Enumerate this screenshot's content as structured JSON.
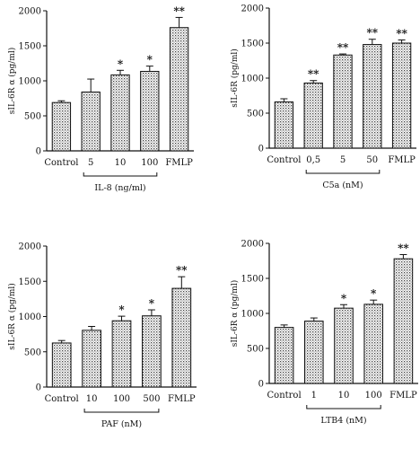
{
  "chart_data": [
    {
      "type": "bar",
      "ylabel": "sIL-6R α (pg/ml)",
      "ylim": [
        0,
        2000
      ],
      "yticks": [
        "0",
        "500",
        "1000",
        "1500",
        "2000"
      ],
      "categories": [
        "Control",
        "5",
        "10",
        "100",
        "FMLP"
      ],
      "values": [
        690,
        840,
        1085,
        1135,
        1760
      ],
      "errors": [
        25,
        185,
        65,
        75,
        145
      ],
      "significance": [
        "",
        "",
        "*",
        "*",
        "**"
      ],
      "group_label": "IL-8  (ng/ml)",
      "group_categories": [
        "5",
        "10",
        "100"
      ]
    },
    {
      "type": "bar",
      "ylabel": "sIL-6R  (pg/ml)",
      "ylim": [
        0,
        2000
      ],
      "yticks": [
        "0",
        "500",
        "1000",
        "1500",
        "2000"
      ],
      "categories": [
        "Control",
        "0,5",
        "5",
        "50",
        "FMLP"
      ],
      "values": [
        660,
        930,
        1330,
        1480,
        1500
      ],
      "errors": [
        45,
        35,
        15,
        75,
        45
      ],
      "significance": [
        "",
        "**",
        "**",
        "**",
        "**"
      ],
      "group_label": "C5a  (nM)",
      "group_categories": [
        "0,5",
        "5",
        "50"
      ]
    },
    {
      "type": "bar",
      "ylabel": "sIL-6R α  (pg/ml)",
      "ylim": [
        0,
        2000
      ],
      "yticks": [
        "0",
        "500",
        "1000",
        "1500",
        "2000"
      ],
      "categories": [
        "Control",
        "10",
        "100",
        "500",
        "FMLP"
      ],
      "values": [
        625,
        805,
        940,
        1010,
        1400
      ],
      "errors": [
        35,
        55,
        65,
        85,
        165
      ],
      "significance": [
        "",
        "",
        "*",
        "*",
        "**"
      ],
      "group_label": "PAF  (nM)",
      "group_categories": [
        "10",
        "100",
        "500"
      ]
    },
    {
      "type": "bar",
      "ylabel": "sIL-6R α  (pg/ml)",
      "ylim": [
        0,
        2000
      ],
      "yticks": [
        "0",
        "500",
        "1000",
        "1500",
        "2000"
      ],
      "categories": [
        "Control",
        "1",
        "10",
        "100",
        "FMLP"
      ],
      "values": [
        800,
        890,
        1075,
        1130,
        1780
      ],
      "errors": [
        35,
        45,
        50,
        60,
        60
      ],
      "significance": [
        "",
        "",
        "*",
        "*",
        "**"
      ],
      "group_label": "LTB4  (nM)",
      "group_categories": [
        "1",
        "10",
        "100"
      ]
    }
  ]
}
